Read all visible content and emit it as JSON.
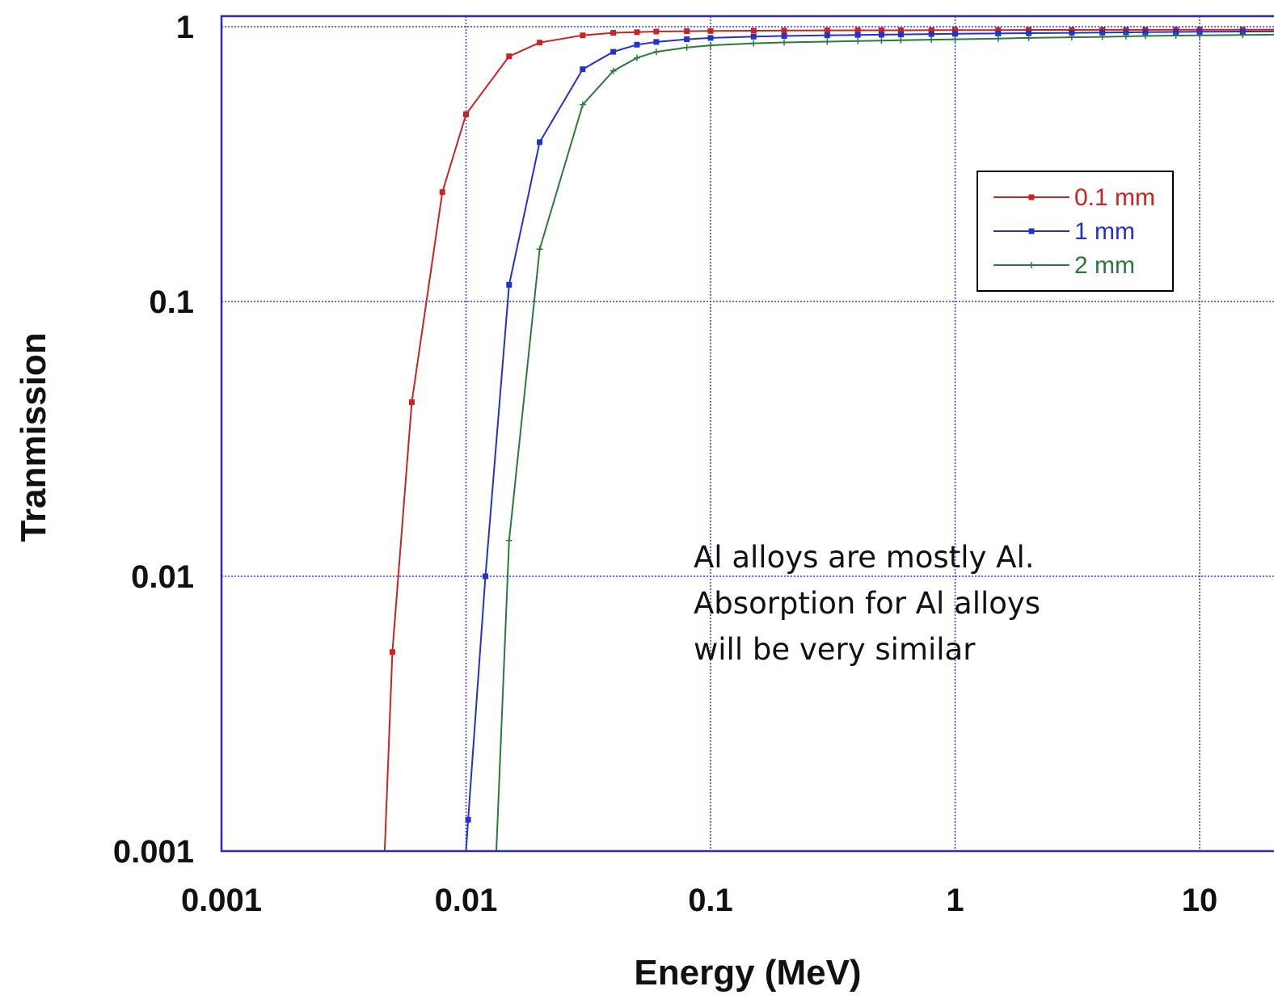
{
  "chart_data": {
    "type": "line",
    "title": "",
    "xlabel": "Energy (MeV)",
    "ylabel": "Tranmission",
    "x_scale": "log",
    "y_scale": "log",
    "xlim": [
      0.001,
      30
    ],
    "ylim": [
      0.001,
      1
    ],
    "grid": true,
    "legend_position": "top-right",
    "x_ticks": [
      {
        "value": 0.001,
        "label": "0.001"
      },
      {
        "value": 0.01,
        "label": "0.01"
      },
      {
        "value": 0.1,
        "label": "0.1"
      },
      {
        "value": 1,
        "label": "1"
      },
      {
        "value": 10,
        "label": "10"
      }
    ],
    "y_ticks": [
      {
        "value": 1,
        "label": "1"
      },
      {
        "value": 0.1,
        "label": "0.1"
      },
      {
        "value": 0.01,
        "label": "0.01"
      },
      {
        "value": 0.001,
        "label": "0.001"
      }
    ],
    "series": [
      {
        "name": "0.1 mm",
        "color": "#cc2222",
        "marker": "square",
        "points": [
          [
            0.00465,
            0.001
          ],
          [
            0.005,
            0.0053
          ],
          [
            0.006,
            0.043
          ],
          [
            0.008,
            0.25
          ],
          [
            0.01,
            0.48
          ],
          [
            0.015,
            0.78
          ],
          [
            0.02,
            0.875
          ],
          [
            0.03,
            0.93
          ],
          [
            0.04,
            0.95
          ],
          [
            0.05,
            0.955
          ],
          [
            0.06,
            0.96
          ],
          [
            0.08,
            0.963
          ],
          [
            0.1,
            0.965
          ],
          [
            0.15,
            0.967
          ],
          [
            0.2,
            0.968
          ],
          [
            0.3,
            0.969
          ],
          [
            0.4,
            0.97
          ],
          [
            0.5,
            0.97
          ],
          [
            0.6,
            0.97
          ],
          [
            0.8,
            0.971
          ],
          [
            1,
            0.971
          ],
          [
            1.5,
            0.972
          ],
          [
            2,
            0.973
          ],
          [
            3,
            0.973
          ],
          [
            4,
            0.974
          ],
          [
            5,
            0.974
          ],
          [
            6,
            0.974
          ],
          [
            8,
            0.975
          ],
          [
            10,
            0.975
          ],
          [
            15,
            0.975
          ],
          [
            20,
            0.976
          ],
          [
            30,
            0.976
          ]
        ]
      },
      {
        "name": "1 mm",
        "color": "#2233cc",
        "marker": "square",
        "points": [
          [
            0.01,
            0.001
          ],
          [
            0.0102,
            0.0013
          ],
          [
            0.012,
            0.01
          ],
          [
            0.015,
            0.115
          ],
          [
            0.02,
            0.38
          ],
          [
            0.03,
            0.7
          ],
          [
            0.04,
            0.81
          ],
          [
            0.05,
            0.86
          ],
          [
            0.06,
            0.88
          ],
          [
            0.08,
            0.9
          ],
          [
            0.1,
            0.91
          ],
          [
            0.15,
            0.92
          ],
          [
            0.2,
            0.925
          ],
          [
            0.3,
            0.93
          ],
          [
            0.4,
            0.933
          ],
          [
            0.5,
            0.935
          ],
          [
            0.6,
            0.937
          ],
          [
            0.8,
            0.94
          ],
          [
            1,
            0.942
          ],
          [
            1.5,
            0.945
          ],
          [
            2,
            0.947
          ],
          [
            3,
            0.95
          ],
          [
            4,
            0.952
          ],
          [
            5,
            0.954
          ],
          [
            6,
            0.955
          ],
          [
            8,
            0.957
          ],
          [
            10,
            0.958
          ],
          [
            15,
            0.96
          ],
          [
            20,
            0.961
          ],
          [
            30,
            0.962
          ]
        ]
      },
      {
        "name": "2 mm",
        "color": "#2a7a3a",
        "marker": "plus",
        "points": [
          [
            0.0133,
            0.001
          ],
          [
            0.015,
            0.0135
          ],
          [
            0.02,
            0.155
          ],
          [
            0.03,
            0.52
          ],
          [
            0.04,
            0.69
          ],
          [
            0.05,
            0.77
          ],
          [
            0.06,
            0.81
          ],
          [
            0.08,
            0.84
          ],
          [
            0.1,
            0.855
          ],
          [
            0.15,
            0.87
          ],
          [
            0.2,
            0.876
          ],
          [
            0.3,
            0.882
          ],
          [
            0.4,
            0.887
          ],
          [
            0.5,
            0.89
          ],
          [
            0.6,
            0.893
          ],
          [
            0.8,
            0.897
          ],
          [
            1,
            0.9
          ],
          [
            1.5,
            0.905
          ],
          [
            2,
            0.91
          ],
          [
            3,
            0.915
          ],
          [
            4,
            0.918
          ],
          [
            5,
            0.922
          ],
          [
            6,
            0.925
          ],
          [
            8,
            0.928
          ],
          [
            10,
            0.93
          ],
          [
            15,
            0.933
          ],
          [
            20,
            0.935
          ],
          [
            30,
            0.937
          ]
        ]
      }
    ],
    "annotation": {
      "lines": [
        "Al alloys are mostly Al.",
        "Absorption for Al alloys",
        "will be very similar"
      ]
    }
  }
}
